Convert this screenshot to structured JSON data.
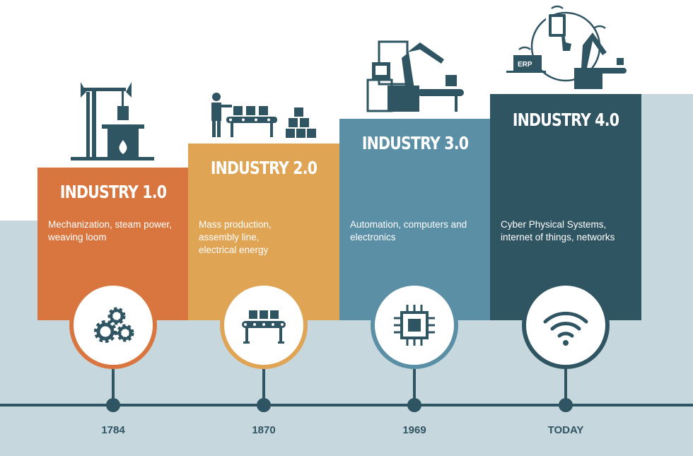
{
  "colors": {
    "industry1": "#d9763f",
    "industry2": "#e0a455",
    "industry3": "#5a8fa6",
    "industry4": "#2f5462",
    "background": "#c6d7de",
    "timeline": "#2f5462"
  },
  "stages": [
    {
      "title": "INDUSTRY 1.0",
      "description": "Mechanization, steam power, weaving loom",
      "year": "1784",
      "icon": "gears-icon",
      "illustration": "steam-engine-icon"
    },
    {
      "title": "INDUSTRY 2.0",
      "description": "Mass production, assembly line, electrical energy",
      "year": "1870",
      "icon": "conveyor-belt-icon",
      "illustration": "assembly-line-worker-icon"
    },
    {
      "title": "INDUSTRY 3.0",
      "description": "Automation, computers and electronics",
      "year": "1969",
      "icon": "microchip-icon",
      "illustration": "robot-arm-computer-icon"
    },
    {
      "title": "INDUSTRY 4.0",
      "description": "Cyber Physical Systems, internet of things, networks",
      "year": "TODAY",
      "icon": "wifi-icon",
      "illustration": "connected-devices-icon",
      "erp_label": "ERP"
    }
  ]
}
